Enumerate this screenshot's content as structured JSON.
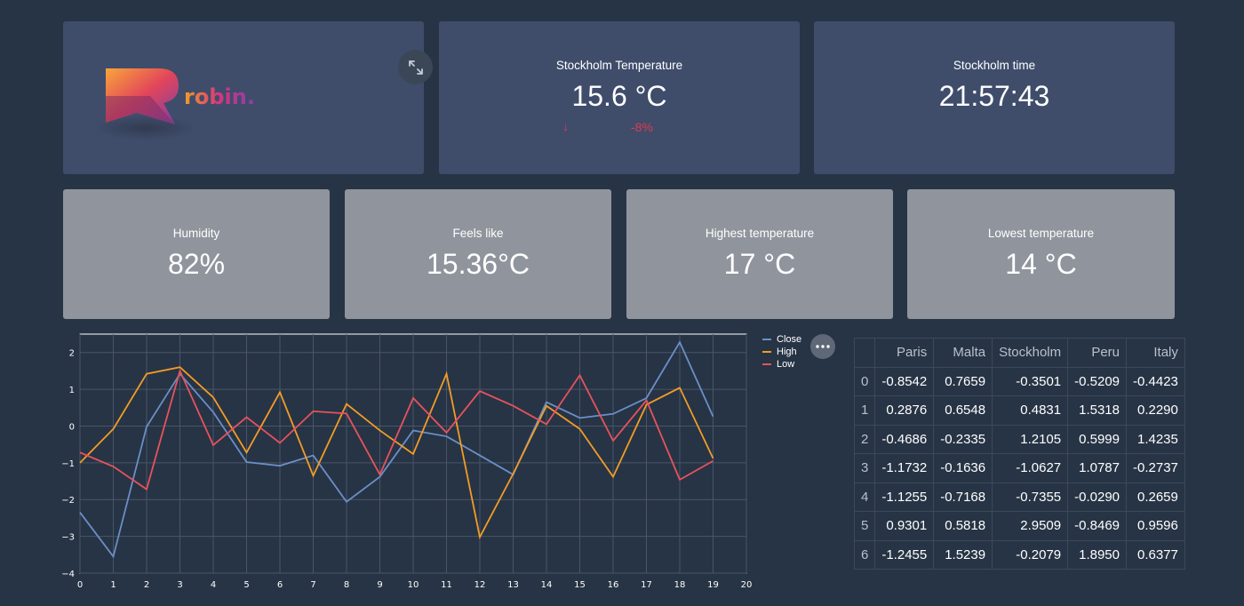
{
  "logo": {
    "brand": "robin."
  },
  "temperature_card": {
    "label": "Stockholm Temperature",
    "value": "15.6 °C",
    "delta_arrow": "↓",
    "delta": "-8%"
  },
  "time_card": {
    "label": "Stockholm time",
    "value": "21:57:43"
  },
  "metrics": [
    {
      "label": "Humidity",
      "value": "82%"
    },
    {
      "label": "Feels like",
      "value": "15.36°C"
    },
    {
      "label": "Highest temperature",
      "value": "17 °C"
    },
    {
      "label": "Lowest temperature",
      "value": "14 °C"
    }
  ],
  "icons": {
    "expand": "expand-icon",
    "menu": "more-options-icon"
  },
  "chart_data": {
    "type": "line",
    "x": [
      0,
      1,
      2,
      3,
      4,
      5,
      6,
      7,
      8,
      9,
      10,
      11,
      12,
      13,
      14,
      15,
      16,
      17,
      18,
      19
    ],
    "xlim": [
      0,
      20
    ],
    "ylim": [
      -4,
      2.5
    ],
    "xticks": [
      0,
      1,
      2,
      3,
      4,
      5,
      6,
      7,
      8,
      9,
      10,
      11,
      12,
      13,
      14,
      15,
      16,
      17,
      18,
      19,
      20
    ],
    "yticks": [
      -4,
      -3,
      -2,
      -1,
      0,
      1,
      2
    ],
    "grid": true,
    "legend": "right",
    "series": [
      {
        "name": "Close",
        "color": "#6a8fc7",
        "values": [
          -2.35,
          -3.55,
          -0.02,
          1.42,
          0.38,
          -0.98,
          -1.08,
          -0.8,
          -2.06,
          -1.38,
          -0.12,
          -0.28,
          -0.8,
          -1.32,
          0.65,
          0.22,
          0.33,
          0.76,
          2.28,
          0.26
        ]
      },
      {
        "name": "High",
        "color": "#f39c26",
        "values": [
          -1.0,
          -0.08,
          1.42,
          1.6,
          0.78,
          -0.72,
          0.92,
          -1.35,
          0.6,
          -0.12,
          -0.76,
          1.42,
          -3.02,
          -1.3,
          0.55,
          -0.08,
          -1.38,
          0.58,
          1.04,
          -0.88
        ]
      },
      {
        "name": "Low",
        "color": "#e8525d",
        "values": [
          -0.72,
          -1.1,
          -1.72,
          1.5,
          -0.52,
          0.24,
          -0.46,
          0.4,
          0.34,
          -1.32,
          0.76,
          -0.18,
          0.95,
          0.55,
          0.05,
          1.38,
          -0.4,
          0.7,
          -1.46,
          -0.95
        ]
      }
    ]
  },
  "table": {
    "columns": [
      "",
      "Paris",
      "Malta",
      "Stockholm",
      "Peru",
      "Italy"
    ],
    "rows": [
      [
        "0",
        "-0.8542",
        "0.7659",
        "-0.3501",
        "-0.5209",
        "-0.4423"
      ],
      [
        "1",
        "0.2876",
        "0.6548",
        "0.4831",
        "1.5318",
        "0.2290"
      ],
      [
        "2",
        "-0.4686",
        "-0.2335",
        "1.2105",
        "0.5999",
        "1.4235"
      ],
      [
        "3",
        "-1.1732",
        "-0.1636",
        "-1.0627",
        "1.0787",
        "-0.2737"
      ],
      [
        "4",
        "-1.1255",
        "-0.7168",
        "-0.7355",
        "-0.0290",
        "0.2659"
      ],
      [
        "5",
        "0.9301",
        "0.5818",
        "2.9509",
        "-0.8469",
        "0.9596"
      ],
      [
        "6",
        "-1.2455",
        "1.5239",
        "-0.2079",
        "1.8950",
        "0.6377"
      ]
    ]
  }
}
